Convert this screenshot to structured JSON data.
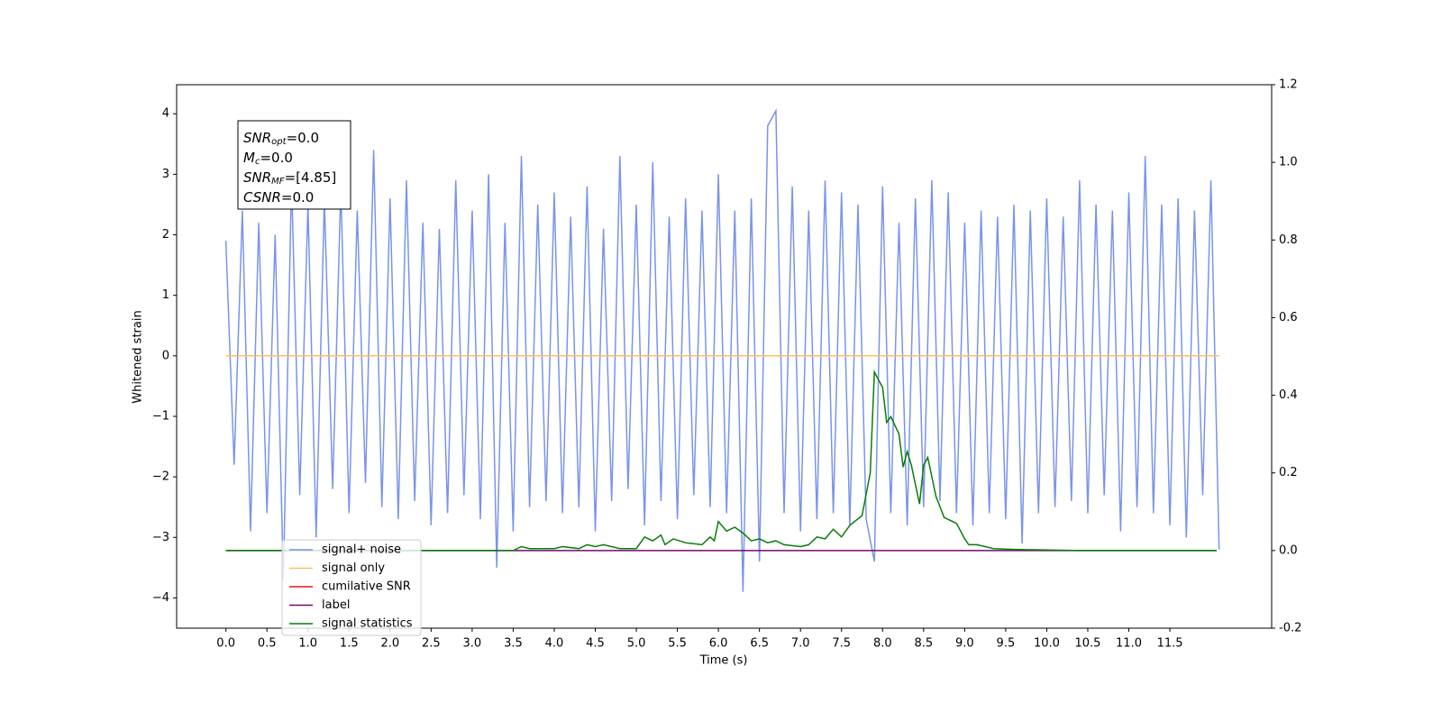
{
  "chart_data": {
    "type": "line",
    "xlabel": "Time (s)",
    "ylabel": "Whitened strain",
    "xlim": [
      -0.6,
      12.74
    ],
    "ylim": [
      -4.5,
      4.48
    ],
    "y2lim": [
      -0.2,
      1.2
    ],
    "xticks": [
      {
        "value": 0,
        "label": "0.0"
      },
      0.5,
      {
        "value": 1,
        "label": "1.0"
      },
      1.5,
      {
        "value": 2,
        "label": "2.0"
      },
      2.5,
      {
        "value": 3,
        "label": "3.0"
      },
      3.5,
      {
        "value": 4,
        "label": "4.0"
      },
      4.5,
      {
        "value": 5,
        "label": "5.0"
      },
      5.5,
      {
        "value": 6,
        "label": "6.0"
      },
      6.5,
      {
        "value": 7,
        "label": "7.0"
      },
      7.5,
      {
        "value": 8,
        "label": "8.0"
      },
      8.5,
      {
        "value": 9,
        "label": "9.0"
      },
      9.5,
      {
        "value": 10,
        "label": "10.0"
      },
      10.5,
      {
        "value": 11,
        "label": "11.0"
      },
      11.5
    ],
    "yticks": [
      {
        "value": -4,
        "label": "−4"
      },
      {
        "value": -3,
        "label": "−3"
      },
      {
        "value": -2,
        "label": "−2"
      },
      {
        "value": -1,
        "label": "−1"
      },
      0,
      1,
      2,
      3,
      4
    ],
    "y2ticks": [
      -0.2,
      {
        "value": 0,
        "label": "0.0"
      },
      0.2,
      0.4,
      0.6,
      0.8,
      {
        "value": 1,
        "label": "1.0"
      },
      1.2
    ],
    "legend": "lower left",
    "stats_box": [
      {
        "name": "SNR",
        "sub": "opt",
        "value": "=0.0"
      },
      {
        "name": "M",
        "sub": "c",
        "value": "=0.0"
      },
      {
        "name": "SNR",
        "sub": "MF",
        "value": "=[4.85]"
      },
      {
        "name": "CSNR",
        "value": "=0.0"
      }
    ],
    "series": [
      {
        "name": "signal+ noise",
        "color": "#7994e8",
        "axis": "y",
        "x": [
          0.0,
          0.1,
          0.2,
          0.3,
          0.4,
          0.5,
          0.6,
          0.7,
          0.8,
          0.9,
          1.0,
          1.1,
          1.2,
          1.3,
          1.4,
          1.5,
          1.6,
          1.7,
          1.8,
          1.9,
          2.0,
          2.1,
          2.2,
          2.3,
          2.4,
          2.5,
          2.6,
          2.7,
          2.8,
          2.9,
          3.0,
          3.1,
          3.2,
          3.3,
          3.4,
          3.5,
          3.6,
          3.7,
          3.8,
          3.9,
          4.0,
          4.1,
          4.2,
          4.3,
          4.4,
          4.5,
          4.6,
          4.7,
          4.8,
          4.9,
          5.0,
          5.1,
          5.2,
          5.3,
          5.4,
          5.5,
          5.6,
          5.7,
          5.8,
          5.9,
          6.0,
          6.1,
          6.2,
          6.3,
          6.4,
          6.5,
          6.6,
          6.7,
          6.8,
          6.9,
          7.0,
          7.1,
          7.2,
          7.3,
          7.4,
          7.5,
          7.6,
          7.7,
          7.8,
          7.9,
          8.0,
          8.1,
          8.2,
          8.3,
          8.4,
          8.5,
          8.6,
          8.7,
          8.8,
          8.9,
          9.0,
          9.1,
          9.2,
          9.3,
          9.4,
          9.5,
          9.6,
          9.7,
          9.8,
          9.9,
          10.0,
          10.1,
          10.2,
          10.3,
          10.4,
          10.5,
          10.6,
          10.7,
          10.8,
          10.9,
          11.0,
          11.1,
          11.2,
          11.3,
          11.4,
          11.5,
          11.6,
          11.7,
          11.8,
          11.9,
          12.0,
          12.1
        ],
        "values": [
          1.9,
          -1.8,
          2.4,
          -2.9,
          2.2,
          -2.6,
          2.0,
          -3.7,
          2.9,
          -2.3,
          2.5,
          -3.0,
          2.6,
          -2.2,
          2.8,
          -2.6,
          2.4,
          -2.1,
          3.4,
          -2.5,
          2.6,
          -2.7,
          2.9,
          -2.4,
          2.2,
          -2.8,
          2.1,
          -2.6,
          2.9,
          -2.3,
          2.4,
          -2.7,
          3.0,
          -3.5,
          2.2,
          -2.9,
          3.3,
          -2.5,
          2.5,
          -2.4,
          2.7,
          -2.6,
          2.3,
          -2.5,
          2.8,
          -2.9,
          2.1,
          -2.4,
          3.3,
          -2.2,
          2.5,
          -2.8,
          3.2,
          -2.4,
          2.3,
          -2.7,
          2.6,
          -2.3,
          2.4,
          -2.5,
          3.0,
          -2.6,
          2.4,
          -3.9,
          2.6,
          -3.4,
          3.8,
          4.05,
          -2.6,
          2.8,
          -2.9,
          2.4,
          -2.7,
          2.9,
          -2.6,
          2.7,
          -2.8,
          2.5,
          -2.7,
          -3.4,
          2.8,
          -2.6,
          2.2,
          -2.8,
          2.6,
          -2.5,
          2.9,
          -2.4,
          2.7,
          -2.6,
          2.2,
          -2.8,
          2.4,
          -2.6,
          2.3,
          -2.7,
          2.5,
          -3.1,
          2.4,
          -2.6,
          2.6,
          -2.5,
          2.3,
          -2.4,
          2.9,
          -2.6,
          2.5,
          -2.3,
          2.4,
          -2.9,
          2.7,
          -2.5,
          3.3,
          -2.6,
          2.5,
          -2.8,
          2.6,
          -3.0,
          2.4,
          -2.3,
          2.9,
          -3.2
        ]
      },
      {
        "name": "signal only",
        "color": "#ffbf60",
        "axis": "y",
        "x": [
          0,
          12.1
        ],
        "values": [
          0,
          0
        ]
      },
      {
        "name": "cumilative SNR",
        "color": "#e8141c",
        "axis": "y2",
        "x": [],
        "values": []
      },
      {
        "name": "label",
        "color": "#730a73",
        "axis": "y2",
        "x": [
          0,
          12.07
        ],
        "values": [
          0,
          0
        ]
      },
      {
        "name": "signal statistics",
        "color": "#0a7d0a",
        "axis": "y2",
        "x": [
          0,
          3.5,
          3.6,
          3.7,
          4.0,
          4.1,
          4.3,
          4.4,
          4.5,
          4.6,
          4.8,
          5.0,
          5.1,
          5.2,
          5.3,
          5.35,
          5.45,
          5.6,
          5.8,
          5.9,
          5.95,
          6.0,
          6.1,
          6.2,
          6.3,
          6.4,
          6.5,
          6.6,
          6.7,
          6.8,
          7.0,
          7.1,
          7.2,
          7.3,
          7.4,
          7.5,
          7.6,
          7.75,
          7.85,
          7.9,
          8.0,
          8.05,
          8.1,
          8.2,
          8.25,
          8.3,
          8.35,
          8.45,
          8.5,
          8.55,
          8.65,
          8.75,
          8.9,
          9.0,
          9.05,
          9.15,
          9.25,
          9.35,
          9.6,
          10.4,
          12.07
        ],
        "values": [
          0,
          0,
          0.01,
          0.005,
          0.005,
          0.01,
          0.005,
          0.015,
          0.01,
          0.015,
          0.005,
          0.005,
          0.035,
          0.025,
          0.04,
          0.015,
          0.03,
          0.02,
          0.015,
          0.035,
          0.025,
          0.075,
          0.05,
          0.06,
          0.045,
          0.025,
          0.03,
          0.02,
          0.025,
          0.015,
          0.01,
          0.015,
          0.035,
          0.03,
          0.055,
          0.035,
          0.065,
          0.09,
          0.2,
          0.46,
          0.42,
          0.33,
          0.345,
          0.3,
          0.215,
          0.255,
          0.22,
          0.12,
          0.22,
          0.24,
          0.14,
          0.085,
          0.07,
          0.03,
          0.015,
          0.015,
          0.01,
          0.005,
          0.003,
          0,
          0
        ]
      }
    ]
  }
}
